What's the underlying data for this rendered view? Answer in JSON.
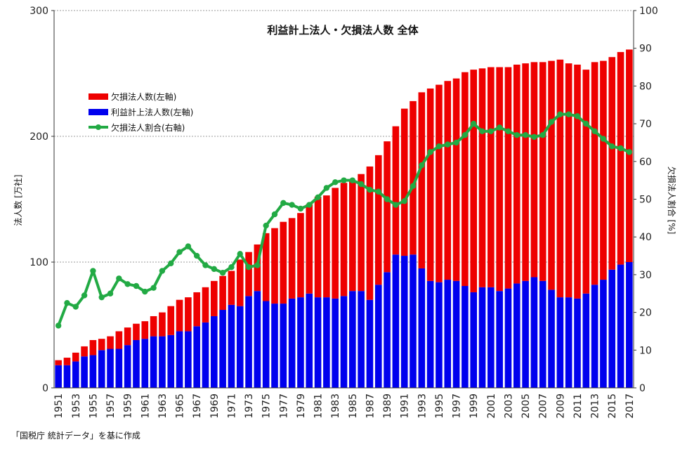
{
  "chart_data": {
    "type": "bar",
    "stacked": true,
    "title": "利益計上法人・欠損法人数 全体",
    "ylabel_left": "法人数 [万社]",
    "ylabel_right": "欠損法人割合 [%]",
    "ylim_left": [
      0,
      300
    ],
    "ylim_right": [
      0,
      100
    ],
    "yticks_left": [
      "0",
      "100",
      "200",
      "300"
    ],
    "yticks_right": [
      "0",
      "10",
      "20",
      "30",
      "40",
      "50",
      "60",
      "70",
      "80",
      "90",
      "100"
    ],
    "grid": true,
    "legend_position": "top-left",
    "colors": {
      "loss": "#ee0000",
      "profit": "#0000ee",
      "ratio": "#22aa44"
    },
    "x": [
      1951,
      1952,
      1953,
      1954,
      1955,
      1956,
      1957,
      1958,
      1959,
      1960,
      1961,
      1962,
      1963,
      1964,
      1965,
      1966,
      1967,
      1968,
      1969,
      1970,
      1971,
      1972,
      1973,
      1974,
      1975,
      1976,
      1977,
      1978,
      1979,
      1980,
      1981,
      1982,
      1983,
      1984,
      1985,
      1986,
      1987,
      1988,
      1989,
      1990,
      1991,
      1992,
      1993,
      1994,
      1995,
      1996,
      1997,
      1998,
      1999,
      2000,
      2001,
      2002,
      2003,
      2004,
      2005,
      2006,
      2007,
      2008,
      2009,
      2010,
      2011,
      2012,
      2013,
      2014,
      2015,
      2016,
      2017
    ],
    "xtick_labels": [
      "1951",
      "1953",
      "1955",
      "1957",
      "1959",
      "1961",
      "1963",
      "1965",
      "1967",
      "1969",
      "1971",
      "1973",
      "1975",
      "1977",
      "1979",
      "1981",
      "1983",
      "1985",
      "1987",
      "1989",
      "1991",
      "1993",
      "1995",
      "1997",
      "1999",
      "2001",
      "2003",
      "2005",
      "2007",
      "2009",
      "2011",
      "2013",
      "2015",
      "2017"
    ],
    "series": [
      {
        "name": "欠損法人数(左軸)",
        "axis": "left",
        "values": [
          4,
          6,
          7,
          8,
          12,
          9,
          10,
          14,
          14,
          13,
          14,
          16,
          19,
          23,
          25,
          27,
          27,
          28,
          28,
          27,
          27,
          37,
          35,
          37,
          54,
          60,
          65,
          64,
          67,
          71,
          80,
          81,
          88,
          90,
          88,
          93,
          106,
          103,
          104,
          102,
          117,
          122,
          140,
          153,
          157,
          158,
          161,
          170,
          177,
          174,
          175,
          178,
          176,
          174,
          173,
          171,
          174,
          182,
          189,
          186,
          186,
          178,
          177,
          174,
          169,
          169,
          169
        ],
        "total": [
          22,
          24,
          28,
          33,
          38,
          39,
          41,
          45,
          48,
          51,
          53,
          57,
          60,
          65,
          70,
          72,
          76,
          80,
          85,
          89,
          93,
          102,
          108,
          114,
          123,
          127,
          132,
          135,
          139,
          146,
          152,
          153,
          159,
          163,
          165,
          170,
          176,
          185,
          196,
          208,
          222,
          228,
          235,
          238,
          241,
          244,
          246,
          251,
          253,
          254,
          255,
          255,
          255,
          257,
          258,
          259,
          259,
          260,
          261,
          258,
          257,
          253,
          259,
          260,
          263,
          267,
          269
        ]
      },
      {
        "name": "利益計上法人数(左軸)",
        "axis": "left",
        "values": [
          18,
          18,
          21,
          25,
          26,
          30,
          31,
          31,
          34,
          38,
          39,
          41,
          41,
          42,
          45,
          45,
          49,
          52,
          57,
          62,
          66,
          65,
          73,
          77,
          69,
          67,
          67,
          71,
          72,
          75,
          72,
          72,
          71,
          73,
          77,
          77,
          70,
          82,
          92,
          106,
          105,
          106,
          95,
          85,
          84,
          86,
          85,
          81,
          76,
          80,
          80,
          77,
          79,
          83,
          85,
          88,
          85,
          78,
          72,
          72,
          71,
          75,
          82,
          86,
          94,
          98,
          100
        ]
      },
      {
        "name": "欠損法人割合(右軸)",
        "axis": "right",
        "values": [
          16.5,
          22.5,
          21.5,
          24.5,
          31,
          24,
          25,
          29,
          27.5,
          27,
          25.5,
          26.5,
          31,
          33,
          36,
          37.5,
          35,
          32.5,
          31.5,
          30.5,
          32,
          35.5,
          32,
          32.5,
          43,
          46,
          49,
          48.5,
          47.5,
          48.5,
          50.5,
          53,
          54.5,
          55,
          55,
          54,
          52.5,
          52,
          50,
          48.5,
          49.5,
          53.5,
          59,
          62.5,
          64,
          64.5,
          65,
          67,
          70,
          68,
          68,
          69,
          68,
          67,
          67,
          66.5,
          67,
          70.5,
          72.5,
          72.5,
          72,
          70,
          68,
          66,
          64,
          63.5,
          62.5
        ]
      }
    ],
    "source": "「国税庁 統計データ」を基に作成"
  }
}
